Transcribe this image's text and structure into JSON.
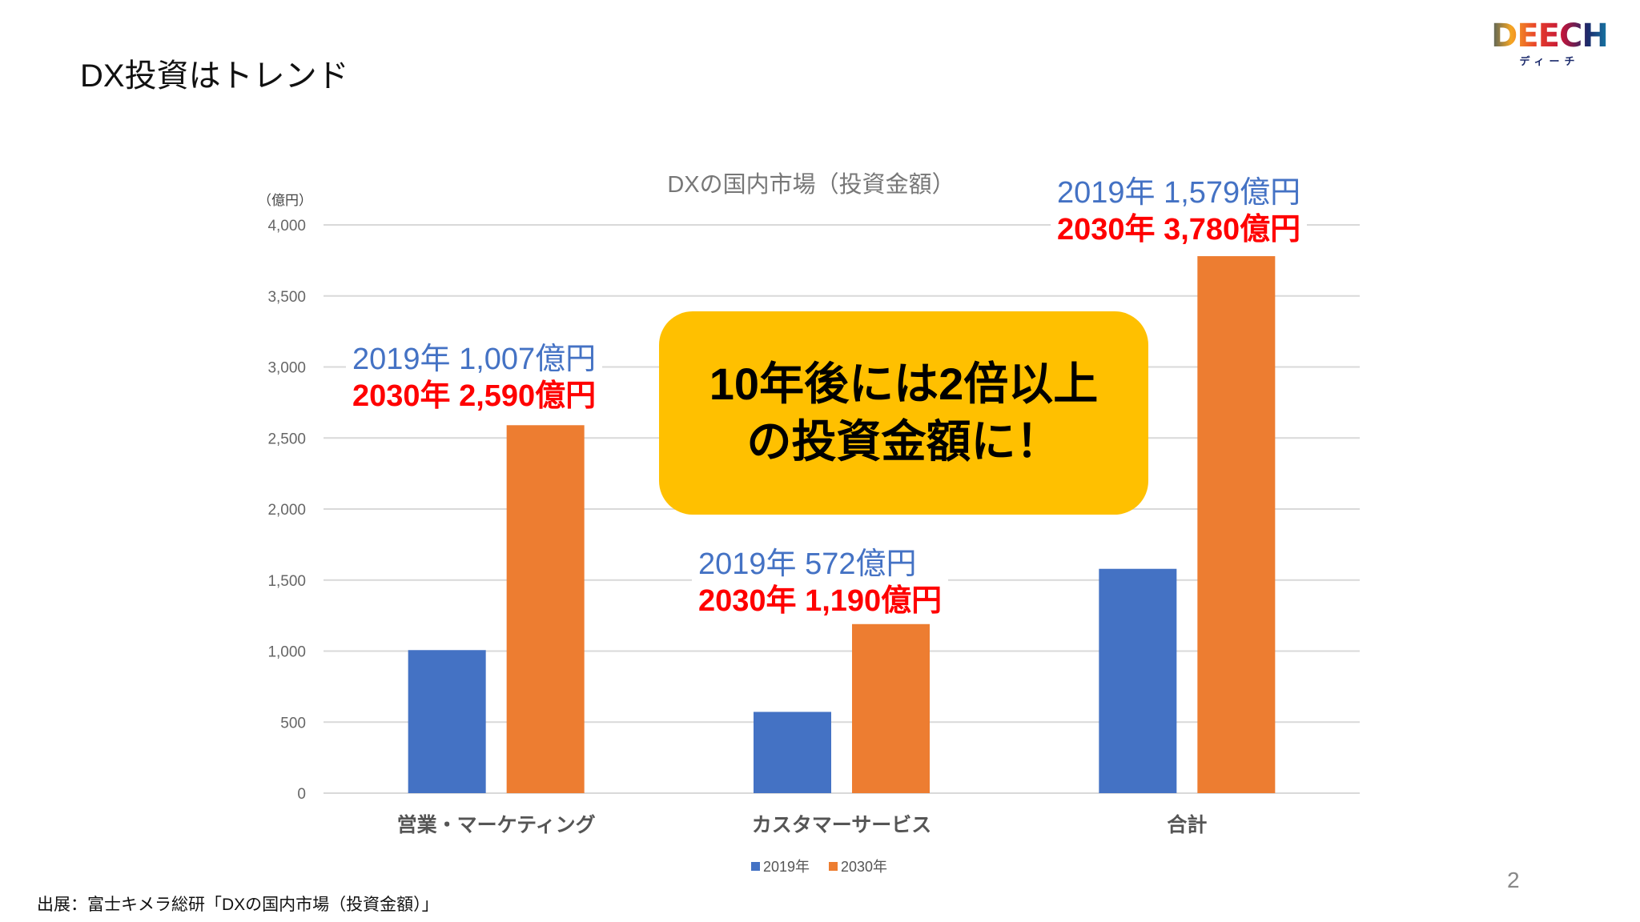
{
  "slide": {
    "title": "DX投資はトレンド",
    "source": "出展：富士キメラ総研「DXの国内市場（投資金額）」",
    "page_number": "2",
    "logo": {
      "word": "DEECH",
      "kana": "ディーチ"
    }
  },
  "callout": {
    "line1": "10年後には2倍以上",
    "line2": "の投資金額に！",
    "color": "#FFC000"
  },
  "annotations": [
    {
      "l2019": "2019年 1,007億円",
      "l2030": "2030年 2,590億円"
    },
    {
      "l2019": "2019年 572億円",
      "l2030": "2030年 1,190億円"
    },
    {
      "l2019": "2019年 1,579億円",
      "l2030": "2030年 3,780億円"
    }
  ],
  "chart_data": {
    "type": "bar",
    "title": "DXの国内市場（投資金額）",
    "unit_label": "（億円）",
    "categories": [
      "営業・マーケティング",
      "カスタマーサービス",
      "合計"
    ],
    "series": [
      {
        "name": "2019年",
        "values": [
          1007,
          572,
          1579
        ],
        "color": "#4472C4"
      },
      {
        "name": "2030年",
        "values": [
          2590,
          1190,
          3780
        ],
        "color": "#ED7D31"
      }
    ],
    "ylim": [
      0,
      4000
    ],
    "yticks": [
      "0",
      "500",
      "1,000",
      "1,500",
      "2,000",
      "2,500",
      "3,000",
      "3,500",
      "4,000"
    ],
    "grid": true,
    "legend": "bottom"
  }
}
